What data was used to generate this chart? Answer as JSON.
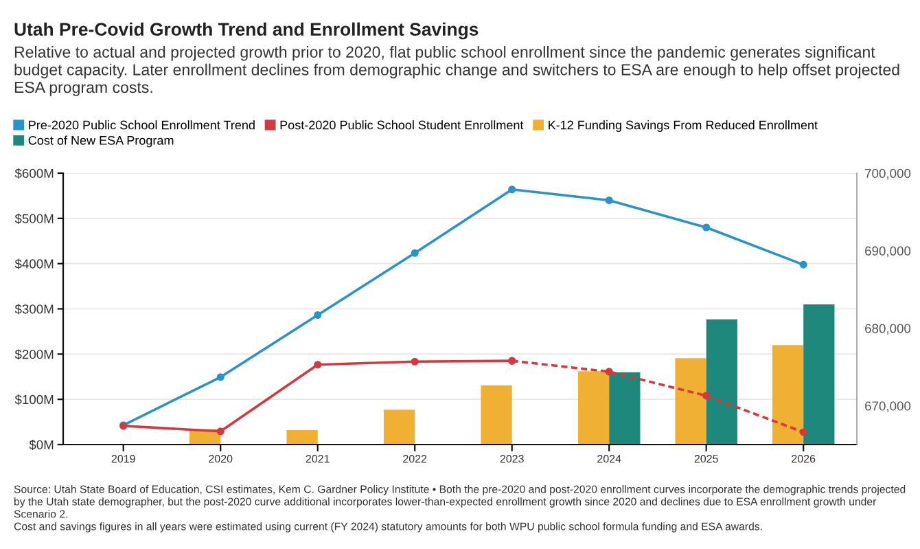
{
  "chart_data": {
    "type": "bar",
    "title": "Utah Pre-Covid Growth Trend and Enrollment Savings",
    "subtitle": "Relative to actual and projected growth prior to 2020, flat public school enrollment since the pandemic generates significant budget capacity. Later enrollment declines from demographic change and switchers to ESA are enough to help offset projected ESA program costs.",
    "categories": [
      "2019",
      "2020",
      "2021",
      "2022",
      "2023",
      "2024",
      "2025",
      "2026"
    ],
    "series": [
      {
        "name": "Pre-2020 Public School Enrollment Trend",
        "type": "line",
        "axis": "y2",
        "color": "#2b93c9",
        "marker": "circle",
        "line_style": "solid",
        "values": [
          667500,
          673700,
          681700,
          689700,
          697900,
          696500,
          693000,
          688200
        ]
      },
      {
        "name": "Post-2020 Public School Student Enrollment",
        "type": "line",
        "axis": "y2",
        "color": "#d3393f",
        "marker": "circle",
        "line_style": "solid",
        "values": [
          667400,
          666700,
          675300,
          675700,
          675800,
          null,
          null,
          null
        ]
      },
      {
        "type": "line",
        "axis": "y2",
        "color": "#d3393f",
        "marker": "circle",
        "line_style": "dashed",
        "values": [
          null,
          null,
          null,
          null,
          675800,
          674400,
          671300,
          666600
        ]
      },
      {
        "name": "K-12 Funding Savings From Reduced Enrollment",
        "color": "#f0b034",
        "values": [
          null,
          34,
          32,
          77,
          131,
          162,
          191,
          220
        ]
      },
      {
        "name": "Cost of New ESA Program",
        "color": "#1f887c",
        "values": [
          null,
          null,
          null,
          null,
          null,
          160,
          277,
          310
        ]
      }
    ],
    "ylim": [
      0,
      600
    ],
    "yticks": [
      {
        "value": 0,
        "label": "$0M"
      },
      {
        "value": 100,
        "label": "$100M"
      },
      {
        "value": 200,
        "label": "$200M"
      },
      {
        "value": 300,
        "label": "$300M"
      },
      {
        "value": 400,
        "label": "$400M"
      },
      {
        "value": 500,
        "label": "$500M"
      },
      {
        "value": 600,
        "label": "$600M"
      }
    ],
    "y2lim": [
      665000,
      700000
    ],
    "y2ticks": [
      {
        "value": 670000,
        "label": "670,000"
      },
      {
        "value": 680000,
        "label": "680,000"
      },
      {
        "value": 690000,
        "label": "690,000"
      },
      {
        "value": 700000,
        "label": "700,000"
      }
    ],
    "grid": "y",
    "legend": "top",
    "annotations": [
      "Source: Utah State Board of Education, CSI estimates, Kem C. Gardner Policy Institute • Both the pre-2020 and post-2020 enrollment curves incorporate the demographic trends projected by the Utah state demographer, but the post-2020 curve additional incorporates lower-than-expected enrollment growth since 2020 and declines due to ESA enrollment growth under Scenario 2.",
      "Cost and savings figures in all years were estimated using current (FY 2024) statutory amounts for both WPU public school formula funding and ESA awards."
    ]
  }
}
